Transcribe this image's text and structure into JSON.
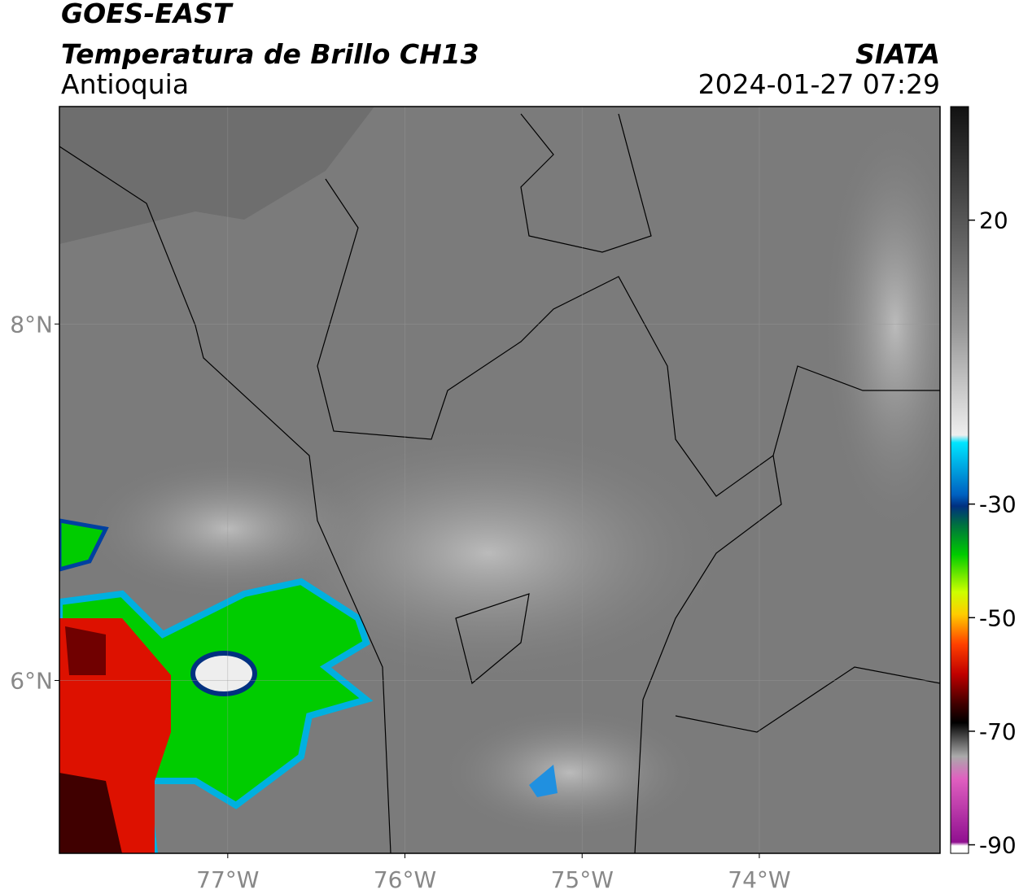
{
  "header": {
    "title": "GOES-EAST",
    "subtitle": "Temperatura de Brillo CH13",
    "region": "Antioquia",
    "source": "SIATA",
    "datetime": "2024-01-27 07:29"
  },
  "map": {
    "xlim": [
      -77.95,
      -72.98
    ],
    "ylim": [
      5.03,
      9.22
    ],
    "xticks": [
      {
        "value": -77,
        "label": "77°W"
      },
      {
        "value": -76,
        "label": "76°W"
      },
      {
        "value": -75,
        "label": "75°W"
      },
      {
        "value": -74,
        "label": "74°W"
      }
    ],
    "yticks": [
      {
        "value": 8,
        "label": "8°N"
      },
      {
        "value": 6,
        "label": "6°N"
      }
    ],
    "grid": true
  },
  "colorbar": {
    "lim": [
      -91.5,
      40
    ],
    "ticks": [
      20,
      -30,
      -50,
      -70,
      -90
    ]
  }
}
